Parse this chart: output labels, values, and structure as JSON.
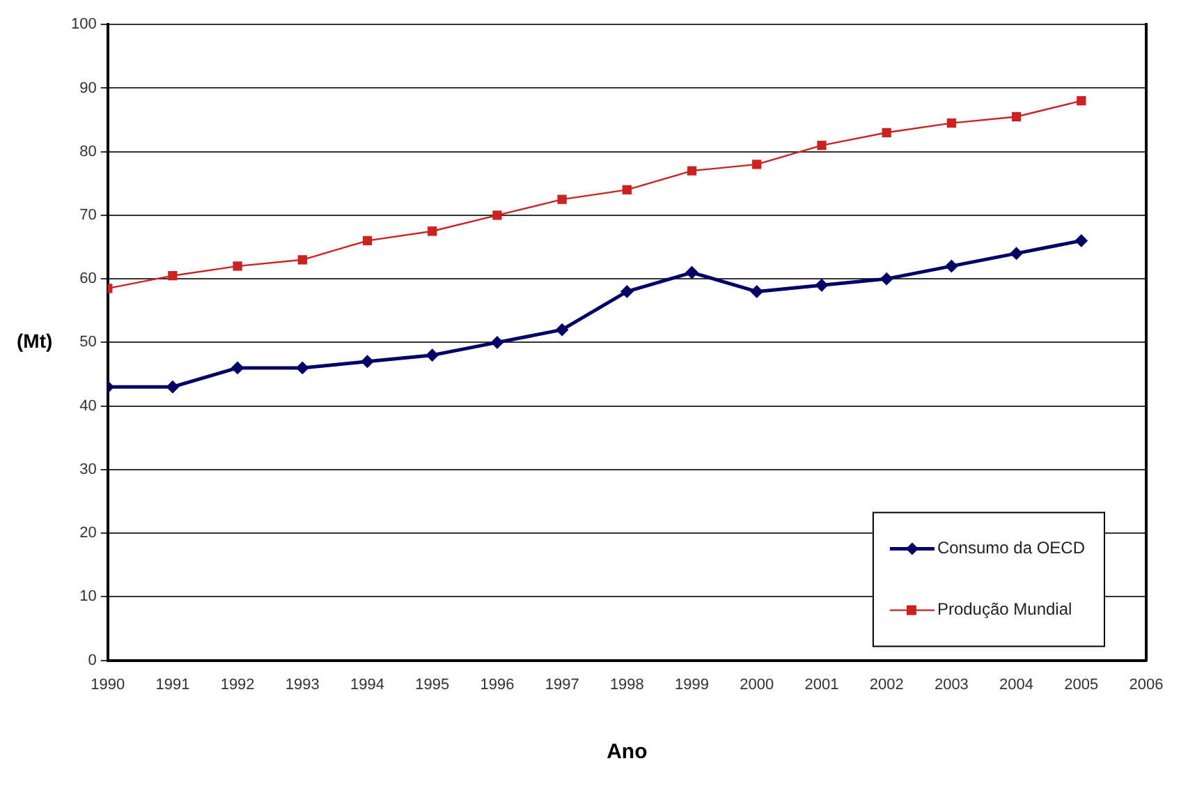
{
  "chart_data": {
    "type": "line",
    "xlabel": "Ano",
    "ylabel": "(Mt)",
    "x": [
      1990,
      1991,
      1992,
      1993,
      1994,
      1995,
      1996,
      1997,
      1998,
      1999,
      2000,
      2001,
      2002,
      2003,
      2004,
      2005
    ],
    "xlim": [
      1990,
      2006
    ],
    "xticks": [
      1990,
      1991,
      1992,
      1993,
      1994,
      1995,
      1996,
      1997,
      1998,
      1999,
      2000,
      2001,
      2002,
      2003,
      2004,
      2005,
      2006
    ],
    "ylim": [
      0,
      100
    ],
    "yticks": [
      0,
      10,
      20,
      30,
      40,
      50,
      60,
      70,
      80,
      90,
      100
    ],
    "grid": "y",
    "legend": "bottom right",
    "series": [
      {
        "name": "Consumo da OECD",
        "color": "#000066",
        "marker": "diamond",
        "values": [
          43,
          43,
          46,
          46,
          47,
          48,
          50,
          52,
          58,
          61,
          58,
          59,
          60,
          62,
          64,
          66
        ]
      },
      {
        "name": "Produção Mundial",
        "color": "#cc2222",
        "marker": "square",
        "values": [
          58.5,
          60.5,
          62,
          63,
          66,
          67.5,
          70,
          72.5,
          74,
          77,
          78,
          81,
          83,
          84.5,
          85.5,
          88
        ]
      }
    ]
  }
}
